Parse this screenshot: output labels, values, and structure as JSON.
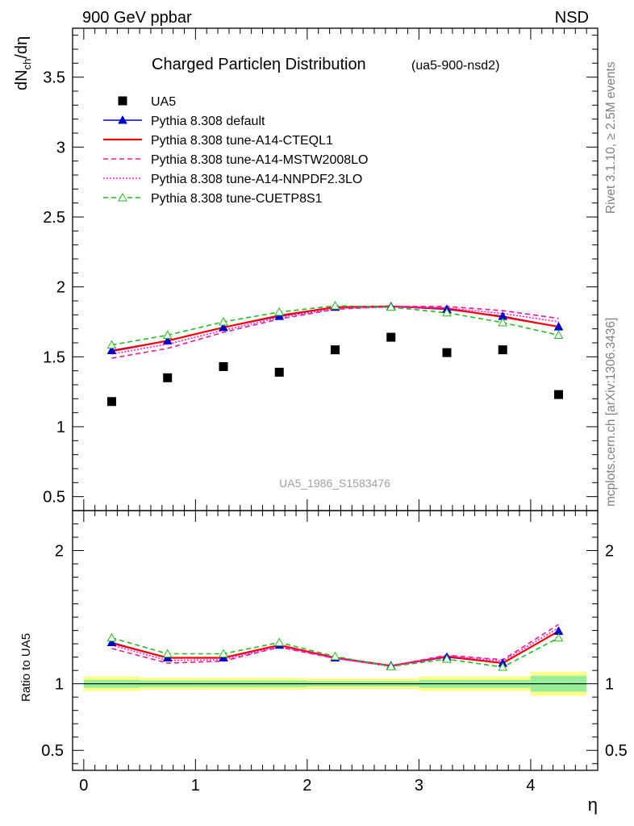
{
  "header": {
    "left": "900 GeV ppbar",
    "right": "NSD",
    "side_top": "Rivet 3.1.10, ≥ 2.5M events",
    "side_bottom": "mcplots.cern.ch [arXiv:1306.3436]"
  },
  "chart_data": {
    "type": "line",
    "title": "Charged Particleη Distribution",
    "subtitle": "(ua5-900-nsd2)",
    "watermark": "UA5_1986_S1583476",
    "xlabel": "η",
    "ylabel": "dNₕₕ/dη",
    "ylabel_parts": {
      "main": "dN",
      "sub": "ch",
      "tail": "/dη"
    },
    "ratio_ylabel": "Ratio to UA5",
    "xlim": [
      -0.1,
      4.6
    ],
    "ylim": [
      0.4,
      3.85
    ],
    "ratio_ylim": [
      0.35,
      2.3
    ],
    "x_ticks": [
      0,
      1,
      2,
      3,
      4
    ],
    "x_tick_labels": [
      "0",
      "1",
      "2",
      "3",
      "4"
    ],
    "y_ticks": [
      0.5,
      1,
      1.5,
      2,
      2.5,
      3,
      3.5
    ],
    "y_tick_labels": [
      "0.5",
      "1",
      "1.5",
      "2",
      "2.5",
      "3",
      "3.5"
    ],
    "ratio_y_ticks": [
      0.5,
      1,
      2
    ],
    "ratio_y_tick_labels": [
      "0.5",
      "1",
      "2"
    ],
    "ratio_y_labels_right": [
      "0.5",
      "1",
      "2"
    ],
    "x": [
      0.25,
      0.75,
      1.25,
      1.75,
      2.25,
      2.75,
      3.25,
      3.75,
      4.25
    ],
    "bin_edges": [
      0,
      0.5,
      1,
      1.5,
      2,
      2.5,
      3,
      3.5,
      4,
      4.5
    ],
    "data": {
      "name": "UA5",
      "values": [
        1.18,
        1.35,
        1.43,
        1.39,
        1.55,
        1.64,
        1.53,
        1.55,
        1.23
      ],
      "ratio_band_inner": [
        0.03,
        0.025,
        0.025,
        0.025,
        0.02,
        0.02,
        0.03,
        0.03,
        0.06
      ],
      "ratio_band_outer": [
        0.055,
        0.045,
        0.045,
        0.045,
        0.04,
        0.04,
        0.055,
        0.055,
        0.09
      ]
    },
    "series": [
      {
        "name": "Pythia 8.308 default",
        "color": "#0000cc",
        "style": "solid",
        "marker": "triangle-filled",
        "values": [
          1.545,
          1.615,
          1.71,
          1.79,
          1.855,
          1.86,
          1.84,
          1.79,
          1.715
        ],
        "ratio": [
          1.31,
          1.195,
          1.195,
          1.29,
          1.195,
          1.135,
          1.2,
          1.155,
          1.395
        ]
      },
      {
        "name": "Pythia 8.308 tune-A14-CTEQL1",
        "color": "#ff0000",
        "style": "solid",
        "marker": "none",
        "values": [
          1.54,
          1.615,
          1.71,
          1.795,
          1.855,
          1.86,
          1.845,
          1.785,
          1.715
        ],
        "ratio": [
          1.305,
          1.195,
          1.195,
          1.29,
          1.195,
          1.135,
          1.205,
          1.155,
          1.395
        ]
      },
      {
        "name": "Pythia 8.308 tune-A14-MSTW2008LO",
        "color": "#ee1a8c",
        "style": "dashed",
        "marker": "none",
        "values": [
          1.49,
          1.56,
          1.675,
          1.77,
          1.84,
          1.86,
          1.86,
          1.83,
          1.775
        ],
        "ratio": [
          1.265,
          1.155,
          1.17,
          1.275,
          1.19,
          1.135,
          1.215,
          1.18,
          1.445
        ]
      },
      {
        "name": "Pythia 8.308 tune-A14-NNPDF2.3LO",
        "color": "#ee1aee",
        "style": "dotted",
        "marker": "none",
        "values": [
          1.52,
          1.59,
          1.69,
          1.78,
          1.845,
          1.855,
          1.85,
          1.81,
          1.75
        ],
        "ratio": [
          1.29,
          1.175,
          1.18,
          1.28,
          1.19,
          1.13,
          1.21,
          1.17,
          1.42
        ]
      },
      {
        "name": "Pythia 8.308 tune-CUETP8S1",
        "color": "#22bb22",
        "style": "dashed",
        "marker": "triangle-open",
        "values": [
          1.585,
          1.655,
          1.75,
          1.82,
          1.865,
          1.855,
          1.815,
          1.745,
          1.655
        ],
        "ratio": [
          1.345,
          1.225,
          1.225,
          1.31,
          1.205,
          1.13,
          1.185,
          1.125,
          1.345
        ]
      }
    ]
  }
}
